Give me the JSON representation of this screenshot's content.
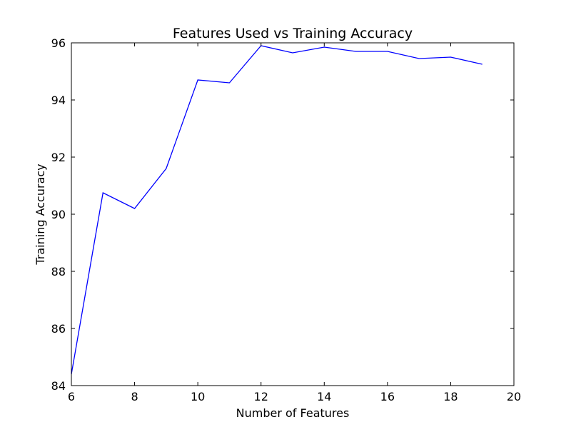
{
  "chart_data": {
    "type": "line",
    "title": "Features Used vs Training Accuracy",
    "xlabel": "Number of Features",
    "ylabel": "Training Accuracy",
    "xlim": [
      6,
      20
    ],
    "ylim": [
      84,
      96
    ],
    "xticks": [
      6,
      8,
      10,
      12,
      14,
      16,
      18,
      20
    ],
    "yticks": [
      84,
      86,
      88,
      90,
      92,
      94,
      96
    ],
    "grid": false,
    "series": [
      {
        "color": "#0000ff",
        "x": [
          6,
          7,
          8,
          9,
          10,
          11,
          12,
          13,
          14,
          15,
          16,
          17,
          18,
          19
        ],
        "y": [
          84.4,
          90.75,
          90.2,
          91.6,
          94.7,
          94.6,
          95.9,
          95.65,
          95.85,
          95.7,
          95.7,
          95.45,
          95.5,
          95.25
        ]
      }
    ]
  }
}
